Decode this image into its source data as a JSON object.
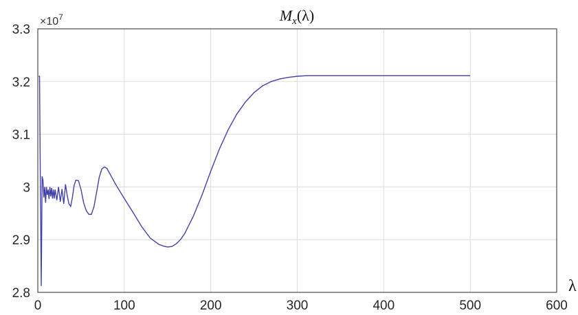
{
  "chart_data": {
    "type": "line",
    "title": "M_x(λ)",
    "xlabel": "λ",
    "ylabel": "",
    "y_multiplier": "×10^7",
    "xlim": [
      0,
      600
    ],
    "ylim": [
      2.8,
      3.3
    ],
    "x_ticks": [
      0,
      100,
      200,
      300,
      400,
      500,
      600
    ],
    "y_ticks": [
      2.8,
      2.9,
      3.0,
      3.1,
      3.2,
      3.3
    ],
    "x_tick_labels": [
      "0",
      "100",
      "200",
      "300",
      "400",
      "500",
      "600"
    ],
    "y_tick_labels": [
      "2.8",
      "2.9",
      "3",
      "3.1",
      "3.2",
      "3.3"
    ],
    "grid": true,
    "line_color": "#4040a8",
    "series": [
      {
        "x": [
          1,
          2,
          3,
          4,
          5,
          6,
          7,
          8,
          9,
          10,
          11,
          12,
          13,
          14,
          15,
          16,
          17,
          18,
          19,
          20,
          22,
          24,
          26,
          28,
          30,
          32,
          34,
          36,
          38,
          40,
          42,
          44,
          47,
          50,
          53,
          56,
          59,
          62,
          65,
          68,
          71,
          74,
          77,
          80,
          85,
          90,
          100,
          110,
          120,
          130,
          140,
          145,
          150,
          155,
          160,
          165,
          170,
          180,
          190,
          200,
          210,
          220,
          230,
          240,
          250,
          260,
          270,
          280,
          290,
          300,
          310,
          320,
          330,
          340,
          350,
          360,
          380,
          400,
          450,
          500
        ],
        "y": [
          3.21,
          3.21,
          3.0,
          2.812,
          3.02,
          3.012,
          2.98,
          3.0,
          2.97,
          3.0,
          2.985,
          2.995,
          2.977,
          3.0,
          2.982,
          2.998,
          2.978,
          2.995,
          2.978,
          2.995,
          2.975,
          3.0,
          2.972,
          2.996,
          2.968,
          3.005,
          2.984,
          2.968,
          2.963,
          2.98,
          3.003,
          3.013,
          3.012,
          2.995,
          2.97,
          2.955,
          2.948,
          2.948,
          2.963,
          2.99,
          3.018,
          3.034,
          3.038,
          3.035,
          3.02,
          3.005,
          2.978,
          2.952,
          2.925,
          2.903,
          2.891,
          2.888,
          2.886,
          2.887,
          2.892,
          2.9,
          2.912,
          2.945,
          2.985,
          3.03,
          3.072,
          3.108,
          3.138,
          3.161,
          3.179,
          3.192,
          3.2,
          3.205,
          3.208,
          3.21,
          3.211,
          3.211,
          3.211,
          3.211,
          3.211,
          3.211,
          3.211,
          3.211,
          3.211,
          3.211
        ]
      }
    ]
  }
}
